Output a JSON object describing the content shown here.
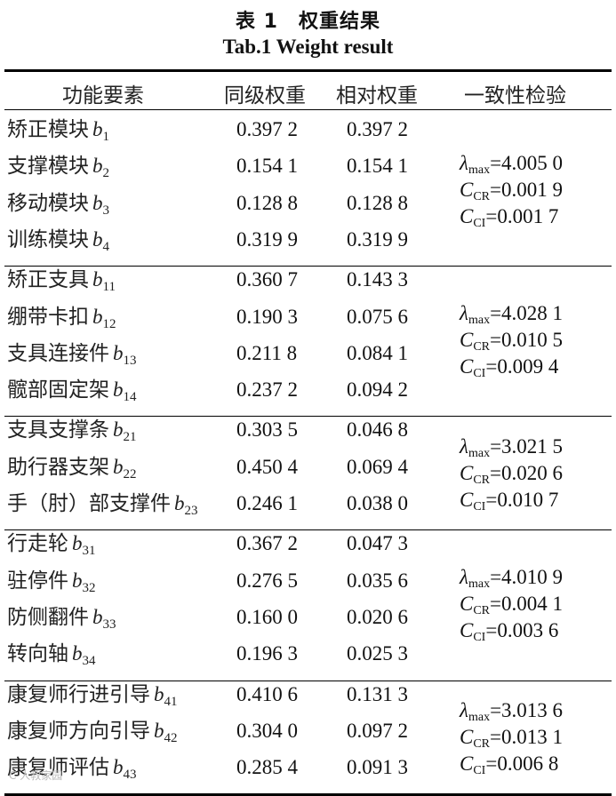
{
  "title_cn": "表 1　权重结果",
  "title_en": "Tab.1 Weight result",
  "headers": [
    "功能要素",
    "同级权重",
    "相对权重",
    "一致性检验"
  ],
  "groups": [
    {
      "rows": [
        {
          "name": "矫正模块",
          "sym": "b",
          "sub": "1",
          "same": "0.397 2",
          "rel": "0.397 2"
        },
        {
          "name": "支撑模块",
          "sym": "b",
          "sub": "2",
          "same": "0.154 1",
          "rel": "0.154 1"
        },
        {
          "name": "移动模块",
          "sym": "b",
          "sub": "3",
          "same": "0.128 8",
          "rel": "0.128 8"
        },
        {
          "name": "训练模块",
          "sym": "b",
          "sub": "4",
          "same": "0.319 9",
          "rel": "0.319 9"
        }
      ],
      "lambda": "=4.005 0",
      "ccr": "=0.001 9",
      "cci": "=0.001 7"
    },
    {
      "rows": [
        {
          "name": "矫正支具",
          "sym": "b",
          "sub": "11",
          "same": "0.360 7",
          "rel": "0.143 3"
        },
        {
          "name": "绷带卡扣",
          "sym": "b",
          "sub": "12",
          "same": "0.190 3",
          "rel": "0.075 6"
        },
        {
          "name": "支具连接件",
          "sym": "b",
          "sub": "13",
          "same": "0.211 8",
          "rel": "0.084 1"
        },
        {
          "name": "髋部固定架",
          "sym": "b",
          "sub": "14",
          "same": "0.237 2",
          "rel": "0.094 2"
        }
      ],
      "lambda": "=4.028 1",
      "ccr": "=0.010 5",
      "cci": "=0.009 4"
    },
    {
      "rows": [
        {
          "name": "支具支撑条",
          "sym": "b",
          "sub": "21",
          "same": "0.303 5",
          "rel": "0.046 8"
        },
        {
          "name": "助行器支架",
          "sym": "b",
          "sub": "22",
          "same": "0.450 4",
          "rel": "0.069 4"
        },
        {
          "name": "手（肘）部支撑件",
          "sym": "b",
          "sub": "23",
          "same": "0.246 1",
          "rel": "0.038 0"
        }
      ],
      "lambda": "=3.021 5",
      "ccr": "=0.020 6",
      "cci": "=0.010 7"
    },
    {
      "rows": [
        {
          "name": "行走轮",
          "sym": "b",
          "sub": "31",
          "same": "0.367 2",
          "rel": "0.047 3"
        },
        {
          "name": "驻停件",
          "sym": "b",
          "sub": "32",
          "same": "0.276 5",
          "rel": "0.035 6"
        },
        {
          "name": "防侧翻件",
          "sym": "b",
          "sub": "33",
          "same": "0.160 0",
          "rel": "0.020 6"
        },
        {
          "name": "转向轴",
          "sym": "b",
          "sub": "34",
          "same": "0.196 3",
          "rel": "0.025 3"
        }
      ],
      "lambda": "=4.010 9",
      "ccr": "=0.004 1",
      "cci": "=0.003 6"
    },
    {
      "rows": [
        {
          "name": "康复师行进引导",
          "sym": "b",
          "sub": "41",
          "same": "0.410 6",
          "rel": "0.131 3"
        },
        {
          "name": "康复师方向引导",
          "sym": "b",
          "sub": "42",
          "same": "0.304 0",
          "rel": "0.097 2"
        },
        {
          "name": "康复师评估",
          "sym": "b",
          "sub": "43",
          "same": "0.285 4",
          "rel": "0.091 3"
        }
      ],
      "lambda": "=3.013 6",
      "ccr": "=0.013 1",
      "cci": "=0.006 8"
    }
  ],
  "symbols": {
    "lambda": "λ",
    "lambda_sub": "max",
    "c": "C",
    "ccr_sub": "CR",
    "cci_sub": "CI"
  },
  "watermark": "C 人教家园"
}
